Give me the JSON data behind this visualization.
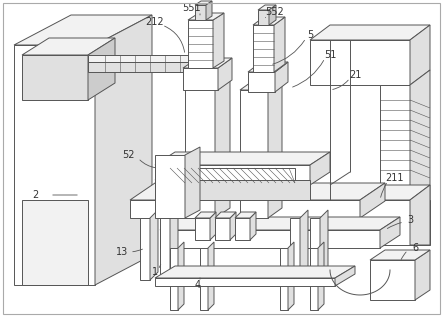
{
  "bg_color": "#ffffff",
  "line_color": "#555555",
  "lw": 0.7,
  "thin_lw": 0.4,
  "label_fs": 7.0,
  "label_color": "#333333",
  "face_white": "#ffffff",
  "face_light": "#f2f2f2",
  "face_mid": "#e0e0e0",
  "face_dark": "#cccccc",
  "face_darkest": "#b8b8b8"
}
